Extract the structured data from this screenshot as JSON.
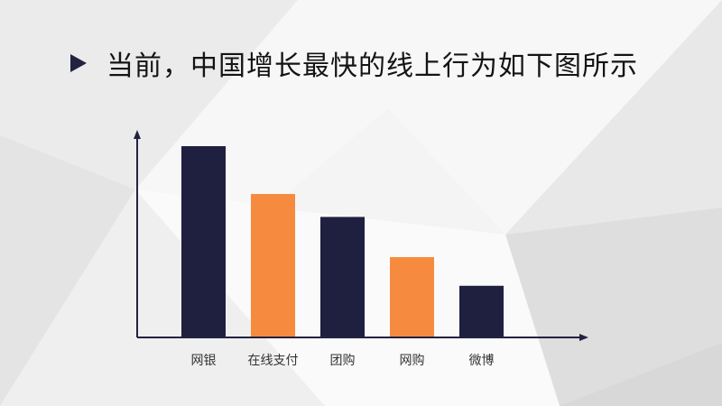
{
  "title": "当前，中国增长最快的线上行为如下图所示",
  "colors": {
    "primary": "#1f1f3f",
    "accent": "#f68b40",
    "axis": "#222241"
  },
  "chart_data": {
    "type": "bar",
    "categories": [
      "网银",
      "在线支付",
      "团购",
      "网购",
      "微博"
    ],
    "values": [
      100,
      75,
      63,
      42,
      27
    ],
    "bar_colors": [
      "#1f1f3f",
      "#f68b40",
      "#1f1f3f",
      "#f68b40",
      "#1f1f3f"
    ],
    "ylim": [
      0,
      100
    ],
    "grid": false,
    "legend": "none"
  }
}
